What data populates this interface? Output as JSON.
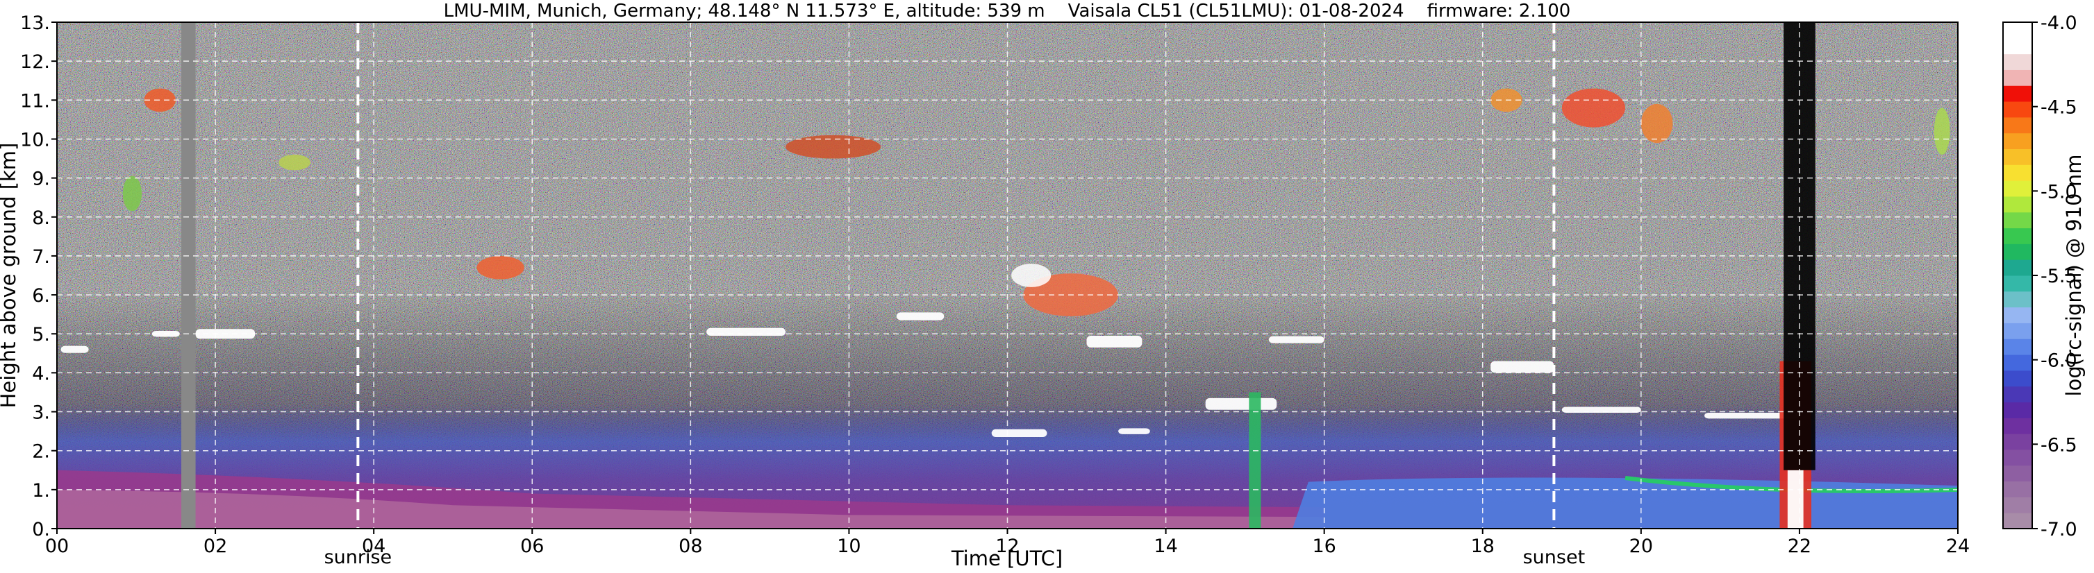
{
  "chart_data": {
    "type": "heatmap",
    "title": "LMU-MIM, Munich, Germany; 48.148° N 11.573° E, altitude: 539 m    Vaisala CL51 (CL51LMU): 01-08-2024    firmware: 2.100",
    "xlabel": "Time [UTC]",
    "ylabel": "Height above ground [km]",
    "xlim": [
      0,
      24
    ],
    "ylim": [
      0,
      13
    ],
    "x_ticks": [
      {
        "value": 0,
        "label": "00"
      },
      {
        "value": 2,
        "label": "02"
      },
      {
        "value": 4,
        "label": "04"
      },
      {
        "value": 6,
        "label": "06"
      },
      {
        "value": 8,
        "label": "08"
      },
      {
        "value": 10,
        "label": "10"
      },
      {
        "value": 12,
        "label": "12"
      },
      {
        "value": 14,
        "label": "14"
      },
      {
        "value": 16,
        "label": "16"
      },
      {
        "value": 18,
        "label": "18"
      },
      {
        "value": 20,
        "label": "20"
      },
      {
        "value": 22,
        "label": "22"
      },
      {
        "value": 24,
        "label": "24"
      }
    ],
    "y_ticks": [
      {
        "value": 0,
        "label": "0."
      },
      {
        "value": 1,
        "label": "1."
      },
      {
        "value": 2,
        "label": "2."
      },
      {
        "value": 3,
        "label": "3."
      },
      {
        "value": 4,
        "label": "4."
      },
      {
        "value": 5,
        "label": "5."
      },
      {
        "value": 6,
        "label": "6."
      },
      {
        "value": 7,
        "label": "7."
      },
      {
        "value": 8,
        "label": "8."
      },
      {
        "value": 9,
        "label": "9."
      },
      {
        "value": 10,
        "label": "10."
      },
      {
        "value": 11,
        "label": "11."
      },
      {
        "value": 12,
        "label": "12."
      },
      {
        "value": 13,
        "label": "13."
      }
    ],
    "grid": true,
    "events": [
      {
        "label": "sunrise",
        "x": 3.8
      },
      {
        "label": "sunset",
        "x": 18.9
      }
    ],
    "data_gap": {
      "x_start": 1.57,
      "x_end": 1.75,
      "color": "#888888"
    },
    "colorbar": {
      "label": "log(rc-signal) @ 910 nm",
      "range": [
        -7.0,
        -4.0
      ],
      "ticks": [
        {
          "value": -4.0,
          "label": "-4.0"
        },
        {
          "value": -4.5,
          "label": "-4.5"
        },
        {
          "value": -5.0,
          "label": "-5.0"
        },
        {
          "value": -5.5,
          "label": "-5.5"
        },
        {
          "value": -6.0,
          "label": "-6.0"
        },
        {
          "value": -6.5,
          "label": "-6.5"
        },
        {
          "value": -7.0,
          "label": "-7.0"
        }
      ],
      "colors": [
        "#a88ca8",
        "#a07ea6",
        "#9870a4",
        "#8e5fa2",
        "#8450a2",
        "#7a41a0",
        "#6e30a0",
        "#5a2aa6",
        "#4a38b6",
        "#3c4ccc",
        "#4468de",
        "#5a84e8",
        "#7aa0ee",
        "#96b6f2",
        "#6cc0c8",
        "#34b8a8",
        "#1ea890",
        "#20b860",
        "#38c850",
        "#74d848",
        "#b0e83c",
        "#e0f03a",
        "#f8e030",
        "#f8c028",
        "#f8a020",
        "#f87818",
        "#f84810",
        "#f01008",
        "#f0b4b4",
        "#f0d8d8",
        "#ffffff",
        "#ffffff"
      ]
    },
    "layers": [
      {
        "desc": "boundary layer",
        "type": "surface"
      }
    ]
  }
}
